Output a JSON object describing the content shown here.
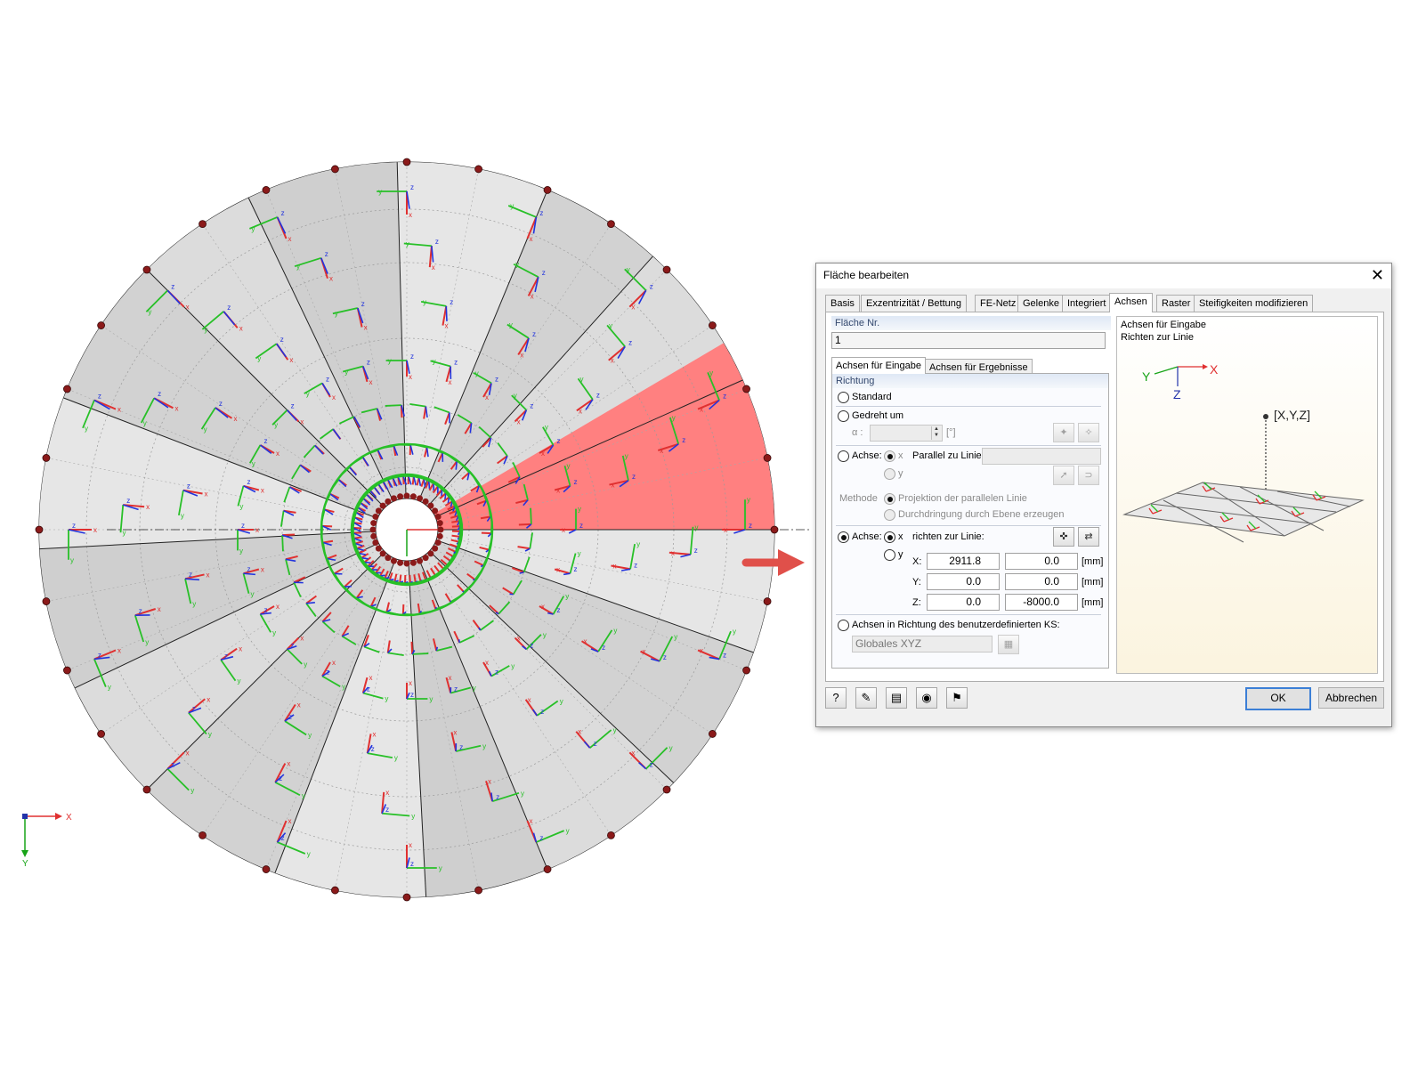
{
  "model": {
    "global_axes": {
      "x_label": "X",
      "y_label": "Y",
      "x_color": "#e03030",
      "y_color": "#18a418"
    },
    "colors": {
      "disk_fill": "#d9d9d9",
      "highlight_sector": "#ff8080",
      "local_x_axis": "#e03030",
      "local_y_axis": "#27c027",
      "local_z_axis": "#2233dd",
      "node": "#8b1a1a"
    },
    "local_axis_labels": {
      "x": "x",
      "y": "y",
      "z": "z"
    }
  },
  "dialog": {
    "title": "Fläche bearbeiten",
    "close_icon": "close-icon",
    "tabs": [
      "Basis",
      "Exzentrizität / Bettung",
      "FE-Netz",
      "Gelenke",
      "Integriert",
      "Achsen",
      "Raster",
      "Steifigkeiten modifizieren"
    ],
    "active_tab": "Achsen",
    "surface": {
      "label": "Fläche Nr.",
      "value": "1"
    },
    "subtabs": [
      "Achsen für Eingabe",
      "Achsen für Ergebnisse"
    ],
    "direction": {
      "header": "Richtung",
      "standard": "Standard",
      "rotated": "Gedreht um",
      "alpha_label": "α :",
      "alpha_unit": "[°]",
      "axis_label": "Achse:",
      "opt_x": "x",
      "opt_y": "y",
      "parallel_label": "Parallel zu Linie:",
      "method_label": "Methode",
      "method1": "Projektion der parallelen Linie",
      "method2": "Durchdringung durch Ebene erzeugen",
      "direct_label": "richten zur Linie:",
      "coords": [
        {
          "axis": "X:",
          "v1": "2911.8",
          "v2": "0.0"
        },
        {
          "axis": "Y:",
          "v1": "0.0",
          "v2": "0.0"
        },
        {
          "axis": "Z:",
          "v1": "0.0",
          "v2": "-8000.0"
        }
      ],
      "unit": "[mm]",
      "user_cs_label": "Achsen in Richtung des benutzerdefinierten KS:",
      "user_cs_value": "Globales XYZ"
    },
    "preview": {
      "line1": "Achsen für Eingabe",
      "line2": "Richten zur Linie",
      "axis_y": "Y",
      "axis_x": "X",
      "axis_z": "Z",
      "point_label": "[X,Y,Z]"
    },
    "buttons": {
      "ok": "OK",
      "cancel": "Abbrechen"
    },
    "footer_icons": [
      "help-icon",
      "edit-icon",
      "units-icon",
      "view-icon",
      "info-icon"
    ]
  }
}
